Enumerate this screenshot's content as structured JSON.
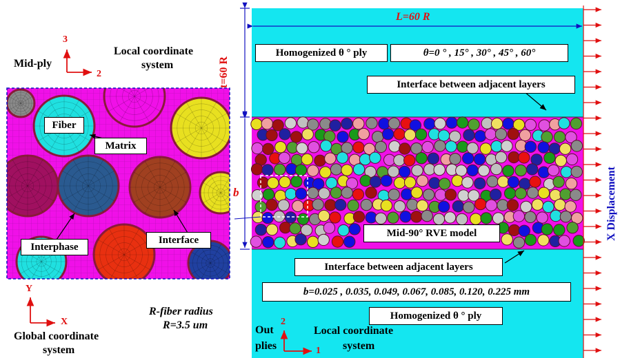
{
  "colors": {
    "homogenized": "#14e6f0",
    "matrix": "#f010e8",
    "fiber_outline": "#8a1a3a",
    "arrow": "#e01010",
    "dimension": "#1010c0"
  },
  "left_axes": {
    "label": "Mid-ply",
    "axis_up": "3",
    "axis_right": "2",
    "caption_line1": "Local coordinate",
    "caption_line2": "system"
  },
  "zoom_panel": {
    "fiber_label": "Fiber",
    "matrix_label": "Matrix",
    "interphase_label": "Interphase",
    "interface_label": "Interface"
  },
  "global_axes": {
    "axis_y": "Y",
    "axis_x": "X",
    "caption_line1": "Global coordinate",
    "caption_line2": "system"
  },
  "radius_note": {
    "line1": "R-fiber radius",
    "line2": "R=3.5 um"
  },
  "dimensions": {
    "length": "L=60 R",
    "thickness": "t=60 R",
    "b": "b"
  },
  "top_ply": {
    "label": "Homogenized θ ° ply",
    "angles": "θ=0 ° , 15° , 30° , 45° , 60°"
  },
  "interface_top": "Interface between adjacent layers",
  "rve_label": "Mid-90° RVE model",
  "interface_bottom": "Interface between adjacent layers",
  "b_values": "b=0.025 , 0.035, 0.049, 0.067, 0.085, 0.120, 0.225 mm",
  "bottom_ply": "Homogenized θ ° ply",
  "bottom_axes": {
    "out_line1": "Out",
    "out_line2": "plies",
    "axis_up": "2",
    "axis_right": "1",
    "caption_line1": "Local coordinate",
    "caption_line2": "system"
  },
  "x_displacement": "X Displacement"
}
